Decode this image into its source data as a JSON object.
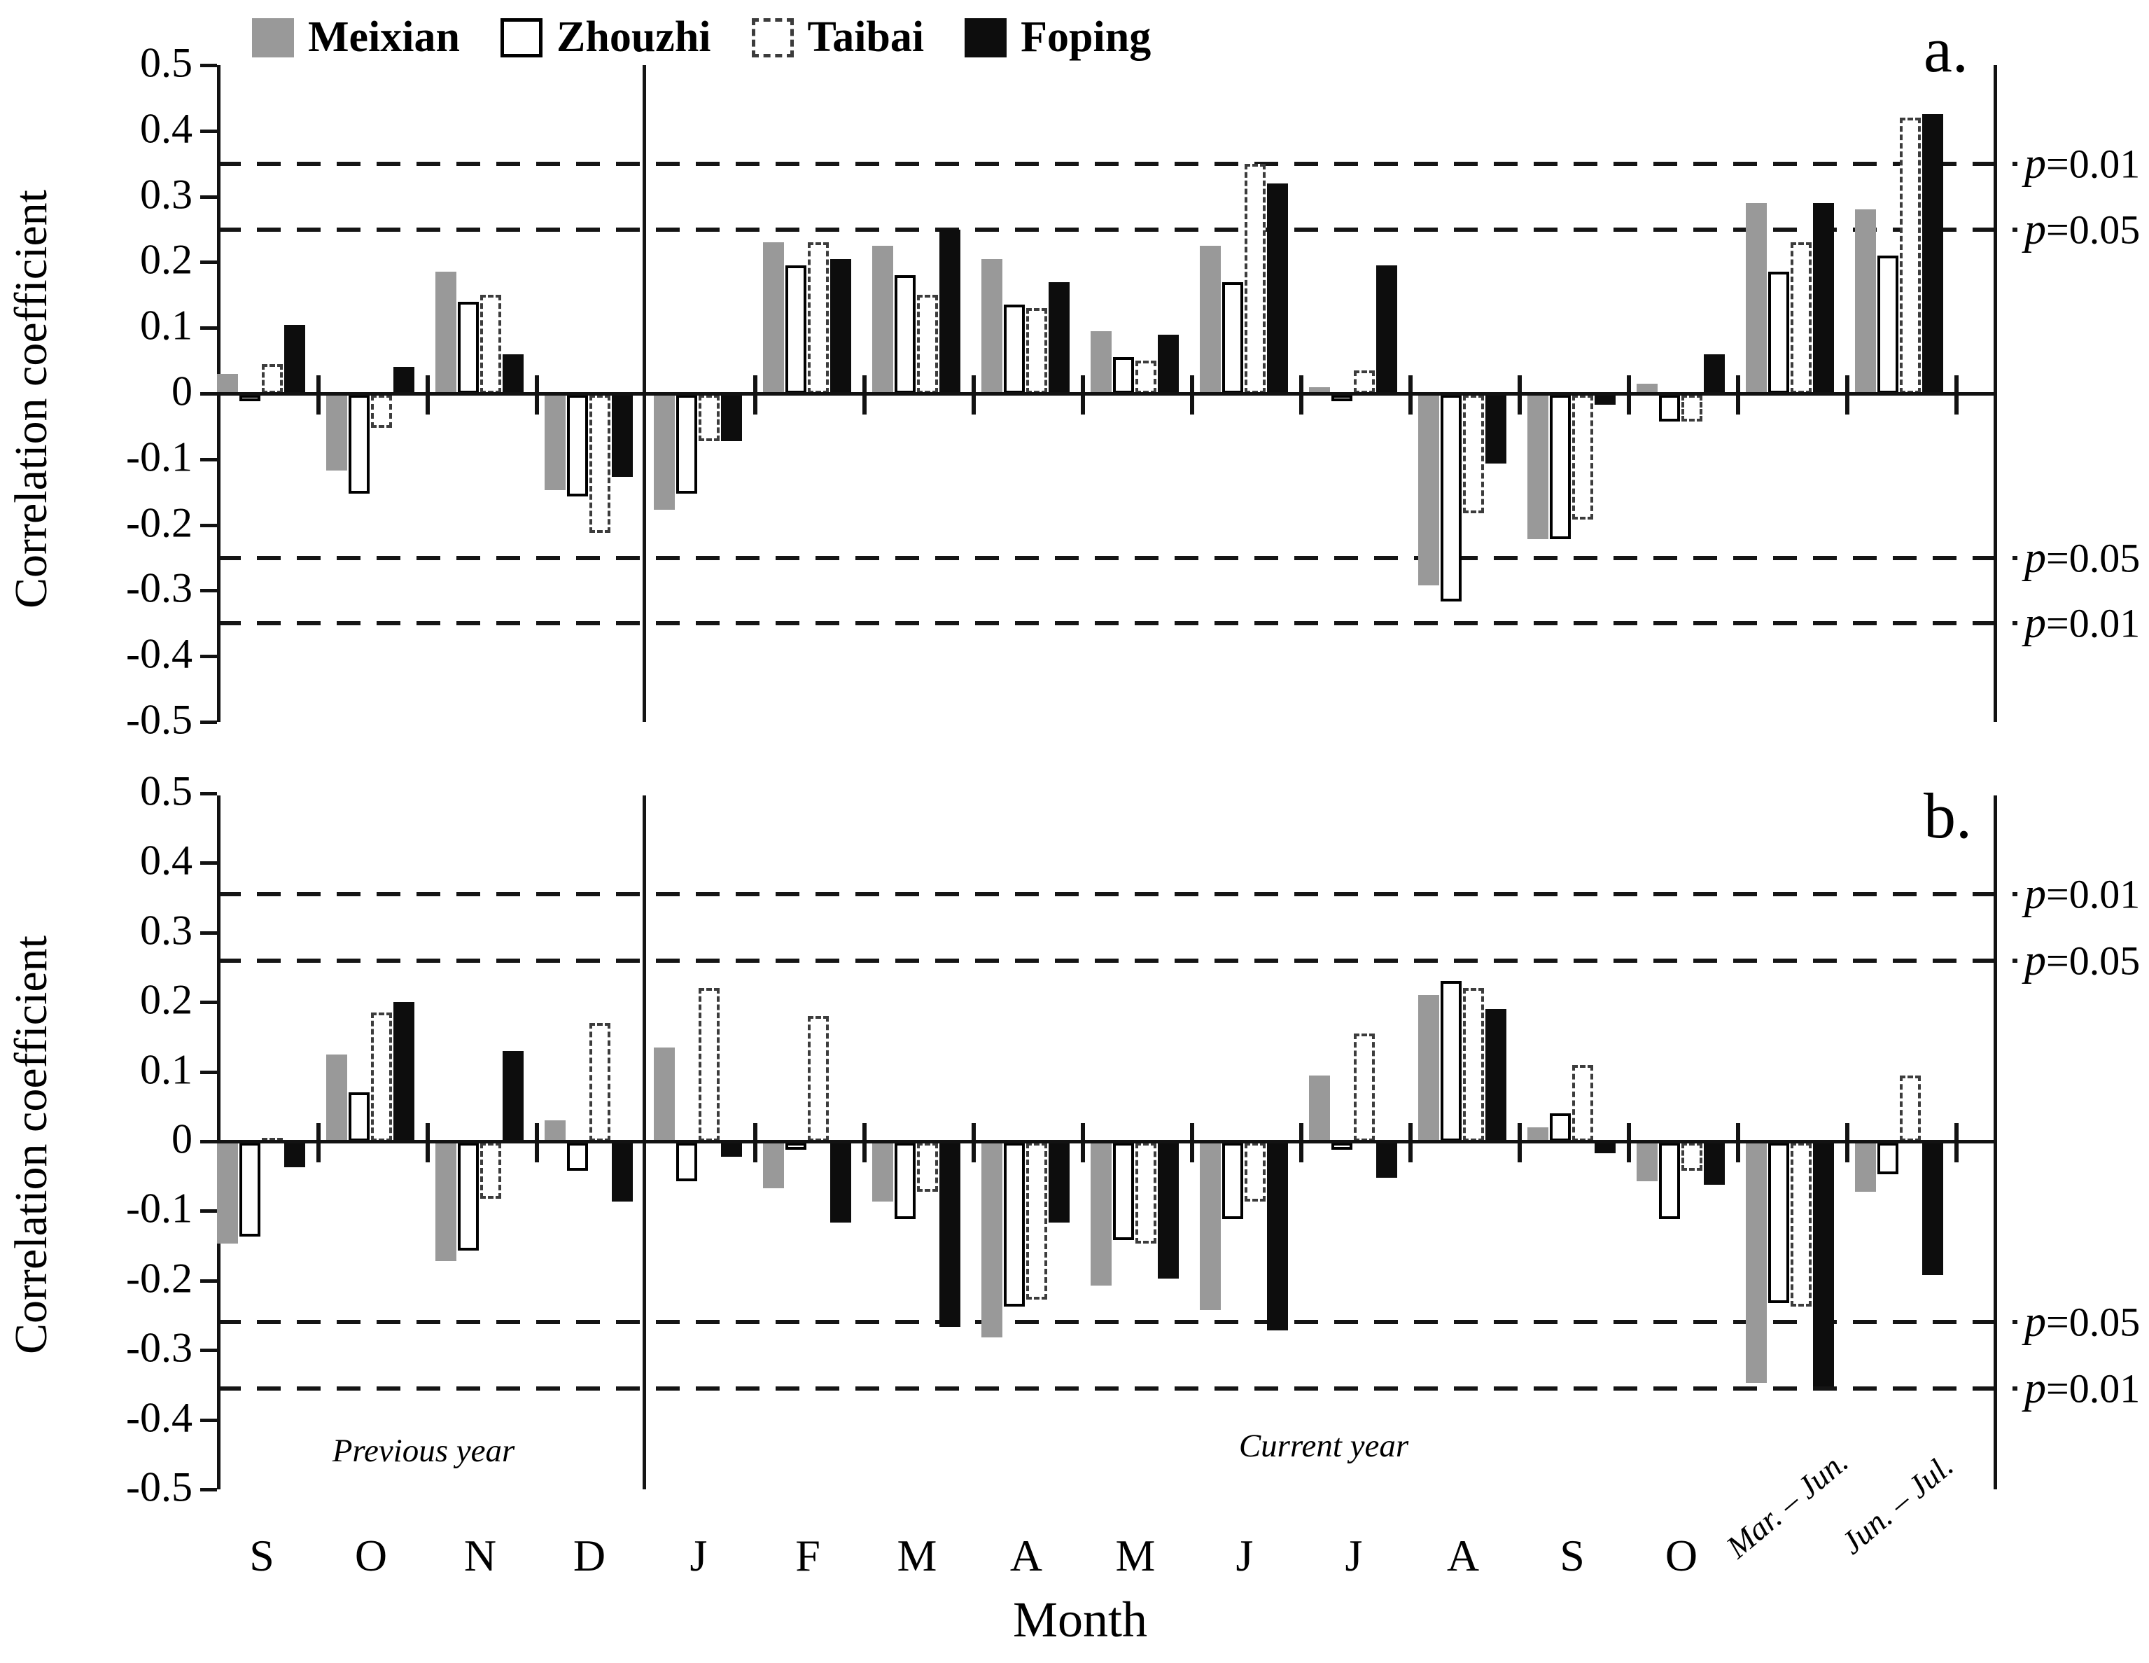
{
  "figure": {
    "ylabel": "Correlation coefficient",
    "xlabel": "Month",
    "y_tick_labels": [
      "0.5",
      "0.4",
      "0.3",
      "0.2",
      "0.1",
      "0",
      "-0.1",
      "-0.2",
      "-0.3",
      "-0.4",
      "-0.5"
    ],
    "months": [
      "S",
      "O",
      "N",
      "D",
      "J",
      "F",
      "M",
      "A",
      "M",
      "J",
      "J",
      "A",
      "S",
      "O"
    ],
    "rotated_categories": [
      "Mar. – Jun.",
      "Jun. – Jul."
    ],
    "previous_year_label": "Previous year",
    "current_year_label": "Current year",
    "p01_label": "p=0.01",
    "p05_label": "p=0.05",
    "legend": [
      {
        "label": "Meixian",
        "swatch": "gray-filled-square"
      },
      {
        "label": "Zhouzhi",
        "swatch": "white-solid-outline-square"
      },
      {
        "label": "Taibai",
        "swatch": "white-dashed-outline-square"
      },
      {
        "label": "Foping",
        "swatch": "black-filled-square"
      }
    ],
    "colors": {
      "meixian": "#999999",
      "zhouzhi": "#ffffff",
      "taibai": "#ffffff",
      "foping": "#0d0d0d",
      "ink": "#121212"
    }
  },
  "chart_data": [
    {
      "type": "bar",
      "panel_letter": "a.",
      "title": "",
      "ylabel": "Correlation coefficient",
      "ylim": [
        -0.5,
        0.5
      ],
      "grid": false,
      "significance_lines": {
        "p01": 0.35,
        "p05": 0.25
      },
      "categories": [
        "S",
        "O",
        "N",
        "D",
        "J",
        "F",
        "M",
        "A",
        "M",
        "J",
        "J",
        "A",
        "S",
        "O",
        "Mar. – Jun.",
        "Jun. – Jul."
      ],
      "series": [
        {
          "name": "Meixian",
          "values": [
            0.03,
            -0.115,
            0.185,
            -0.145,
            -0.175,
            0.23,
            0.225,
            0.205,
            0.095,
            0.225,
            0.01,
            -0.29,
            -0.22,
            0.015,
            0.29,
            0.28
          ]
        },
        {
          "name": "Zhouzhi",
          "values": [
            -0.01,
            -0.15,
            0.14,
            -0.155,
            -0.15,
            0.195,
            0.18,
            0.135,
            0.055,
            0.17,
            -0.01,
            -0.315,
            -0.22,
            -0.04,
            0.185,
            0.21
          ]
        },
        {
          "name": "Taibai",
          "values": [
            0.045,
            -0.05,
            0.15,
            -0.21,
            -0.07,
            0.23,
            0.15,
            0.13,
            0.05,
            0.35,
            0.035,
            -0.18,
            -0.19,
            -0.04,
            0.23,
            0.42
          ]
        },
        {
          "name": "Foping",
          "values": [
            0.105,
            0.04,
            0.06,
            -0.125,
            -0.07,
            0.205,
            0.25,
            0.17,
            0.09,
            0.32,
            0.195,
            -0.105,
            -0.015,
            0.06,
            0.29,
            0.425
          ]
        }
      ]
    },
    {
      "type": "bar",
      "panel_letter": "b.",
      "title": "",
      "ylabel": "Correlation coefficient",
      "ylim": [
        -0.5,
        0.5
      ],
      "grid": false,
      "significance_lines": {
        "p01": 0.355,
        "p05": 0.26
      },
      "categories": [
        "S",
        "O",
        "N",
        "D",
        "J",
        "F",
        "M",
        "A",
        "M",
        "J",
        "J",
        "A",
        "S",
        "O",
        "Mar. – Jun.",
        "Jun. – Jul."
      ],
      "series": [
        {
          "name": "Meixian",
          "values": [
            -0.145,
            0.125,
            -0.17,
            0.03,
            0.135,
            -0.065,
            -0.085,
            -0.28,
            -0.205,
            -0.24,
            0.095,
            0.21,
            0.02,
            -0.055,
            -0.345,
            -0.07
          ]
        },
        {
          "name": "Zhouzhi",
          "values": [
            -0.135,
            0.07,
            -0.155,
            -0.04,
            -0.055,
            -0.01,
            -0.11,
            -0.235,
            -0.14,
            -0.11,
            -0.01,
            0.23,
            0.04,
            -0.11,
            -0.23,
            -0.045
          ]
        },
        {
          "name": "Taibai",
          "values": [
            0.005,
            0.185,
            -0.08,
            0.17,
            0.22,
            0.18,
            -0.07,
            -0.225,
            -0.145,
            -0.085,
            0.155,
            0.22,
            0.11,
            -0.04,
            -0.235,
            0.095
          ]
        },
        {
          "name": "Foping",
          "values": [
            -0.035,
            0.2,
            0.13,
            -0.085,
            -0.02,
            -0.115,
            -0.265,
            -0.115,
            -0.195,
            -0.27,
            -0.05,
            0.19,
            -0.015,
            -0.06,
            -0.35,
            -0.19
          ]
        }
      ]
    }
  ]
}
